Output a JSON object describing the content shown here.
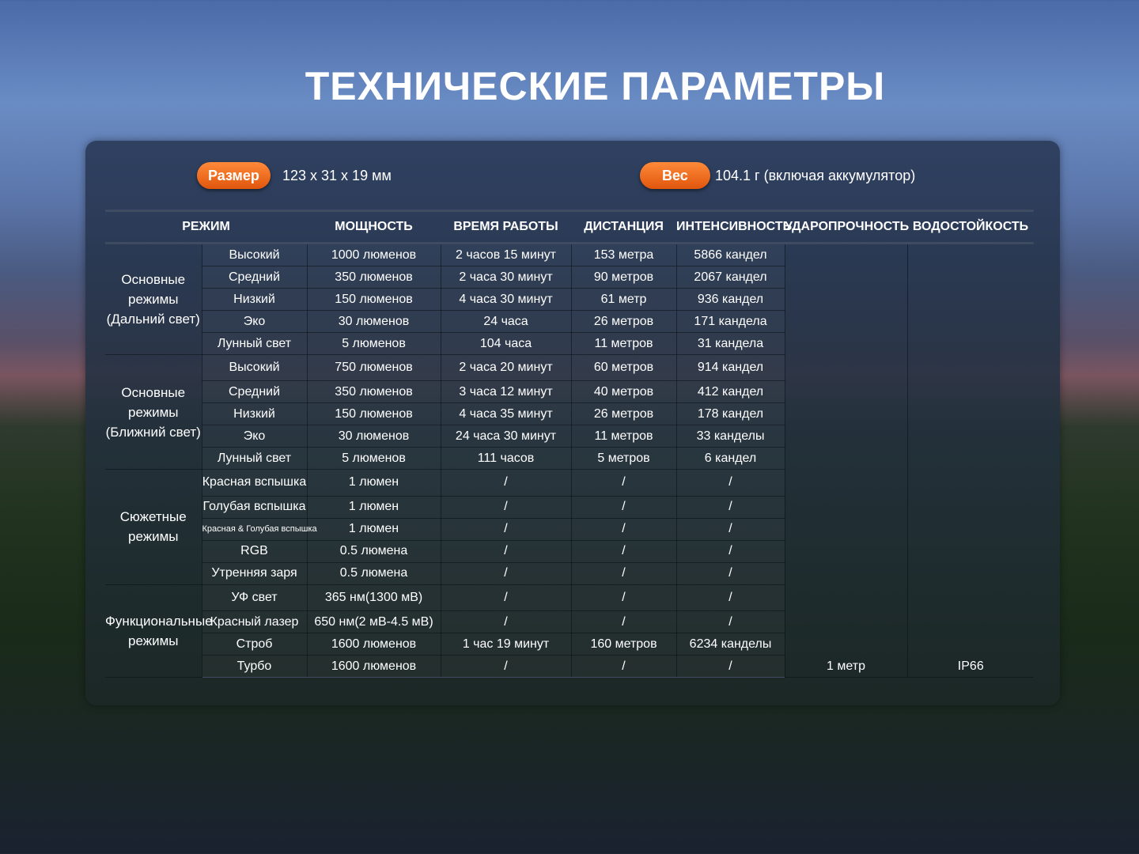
{
  "title": "ТЕХНИЧЕСКИЕ ПАРАМЕТРЫ",
  "specs": {
    "size": {
      "label": "Размер",
      "value": "123 x 31 x 19 мм"
    },
    "weight": {
      "label": "Вес",
      "value": "104.1 г (включая аккумулятор)"
    }
  },
  "table": {
    "headers": [
      "РЕЖИМ",
      "МОЩНОСТЬ",
      "ВРЕМЯ РАБОТЫ",
      "ДИСТАНЦИЯ",
      "ИНТЕНСИВНОСТЬ",
      "УДАРОПРОЧНОСТЬ",
      "ВОДОСТОЙКОСТЬ"
    ],
    "groups": [
      {
        "name": "Основные режимы (Дальний свет)",
        "rows": [
          [
            "Высокий",
            "1000 люменов",
            "2 часов 15 минут",
            "153 метра",
            "5866 кандел"
          ],
          [
            "Средний",
            "350 люменов",
            "2 часа 30 минут",
            "90 метров",
            "2067 кандел"
          ],
          [
            "Низкий",
            "150 люменов",
            "4 часа 30 минут",
            "61 метр",
            "936 кандел"
          ],
          [
            "Эко",
            "30 люменов",
            "24 часа",
            "26 метров",
            "171 кандела"
          ],
          [
            "Лунный свет",
            "5 люменов",
            "104 часа",
            "11 метров",
            "31 кандела"
          ]
        ]
      },
      {
        "name": "Основные режимы (Ближний свет)",
        "rows": [
          [
            "Высокий",
            "750 люменов",
            "2 часа 20 минут",
            "60 метров",
            "914 кандел"
          ],
          [
            "Средний",
            "350 люменов",
            "3 часа 12 минут",
            "40 метров",
            "412 кандел"
          ],
          [
            "Низкий",
            "150 люменов",
            "4 часа 35 минут",
            "26 метров",
            "178 кандел"
          ],
          [
            "Эко",
            "30 люменов",
            "24 часа 30 минут",
            "11 метров",
            "33 канделы"
          ],
          [
            "Лунный свет",
            "5 люменов",
            "111 часов",
            "5 метров",
            "6 кандел"
          ]
        ]
      },
      {
        "name": "Сюжетные режимы",
        "rows": [
          [
            "Красная вспышка",
            "1 люмен",
            "/",
            "/",
            "/"
          ],
          [
            "Голубая вспышка",
            "1 люмен",
            "/",
            "/",
            "/"
          ],
          [
            "Красная & Голубая вспышка",
            "1 люмен",
            "/",
            "/",
            "/"
          ],
          [
            "RGB",
            "0.5 люмена",
            "/",
            "/",
            "/"
          ],
          [
            "Утренняя заря",
            "0.5 люмена",
            "/",
            "/",
            "/"
          ]
        ]
      },
      {
        "name": "Функциональные режимы",
        "rows": [
          [
            "УФ свет",
            "365 нм(1300 мВ)",
            "/",
            "/",
            "/"
          ],
          [
            "Красный лазер",
            "650 нм(2 мВ-4.5 мВ)",
            "/",
            "/",
            "/"
          ],
          [
            "Строб",
            "1600 люменов",
            "1 час 19 минут",
            "160 метров",
            "6234 канделы"
          ],
          [
            "Турбо",
            "1600 люменов",
            "/",
            "/",
            "/"
          ]
        ]
      }
    ],
    "impact": "1 метр",
    "water": "IP66"
  }
}
